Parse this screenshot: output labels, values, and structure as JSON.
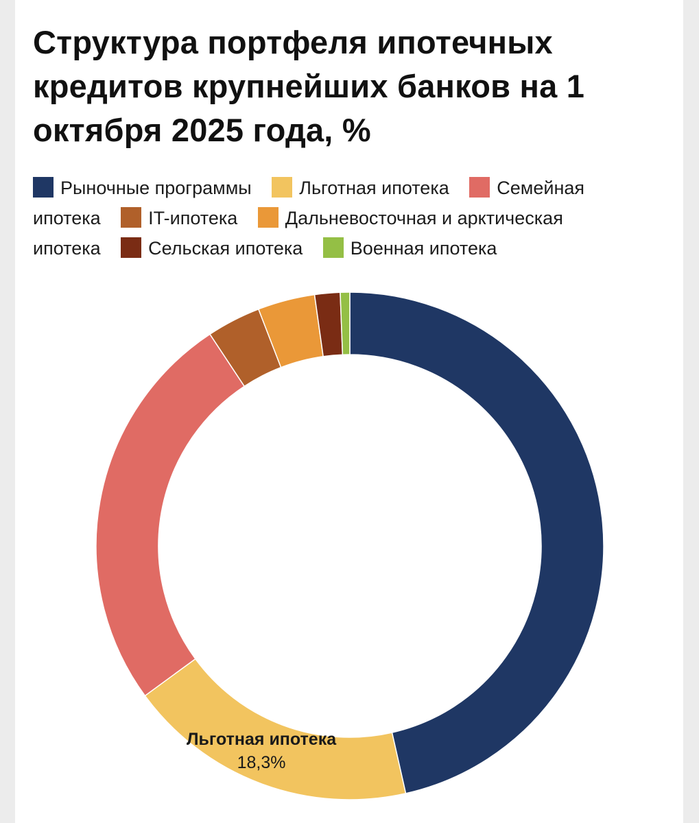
{
  "chart_data": {
    "type": "pie",
    "title": "Структура портфеля ипотечных кредитов крупнейших банков на 1 октября 2025 года, %",
    "legend_position": "top",
    "donut": true,
    "slices": [
      {
        "name": "Рыночные программы",
        "value": 46.0,
        "color": "#1f3764"
      },
      {
        "name": "Льготная ипотека",
        "value": 18.3,
        "color": "#f2c45f",
        "label": "Льготная ипотека",
        "value_label": "18,3%"
      },
      {
        "name": "Семейная ипотека",
        "value": 25.5,
        "color": "#e06b64"
      },
      {
        "name": "IT-ипотека",
        "value": 3.4,
        "color": "#b0602a"
      },
      {
        "name": "Дальневосточная и арктическая ипотека",
        "value": 3.6,
        "color": "#ea9838"
      },
      {
        "name": "Сельская ипотека",
        "value": 1.6,
        "color": "#7a2c14"
      },
      {
        "name": "Военная ипотека",
        "value": 0.6,
        "color": "#94bf45"
      }
    ]
  }
}
